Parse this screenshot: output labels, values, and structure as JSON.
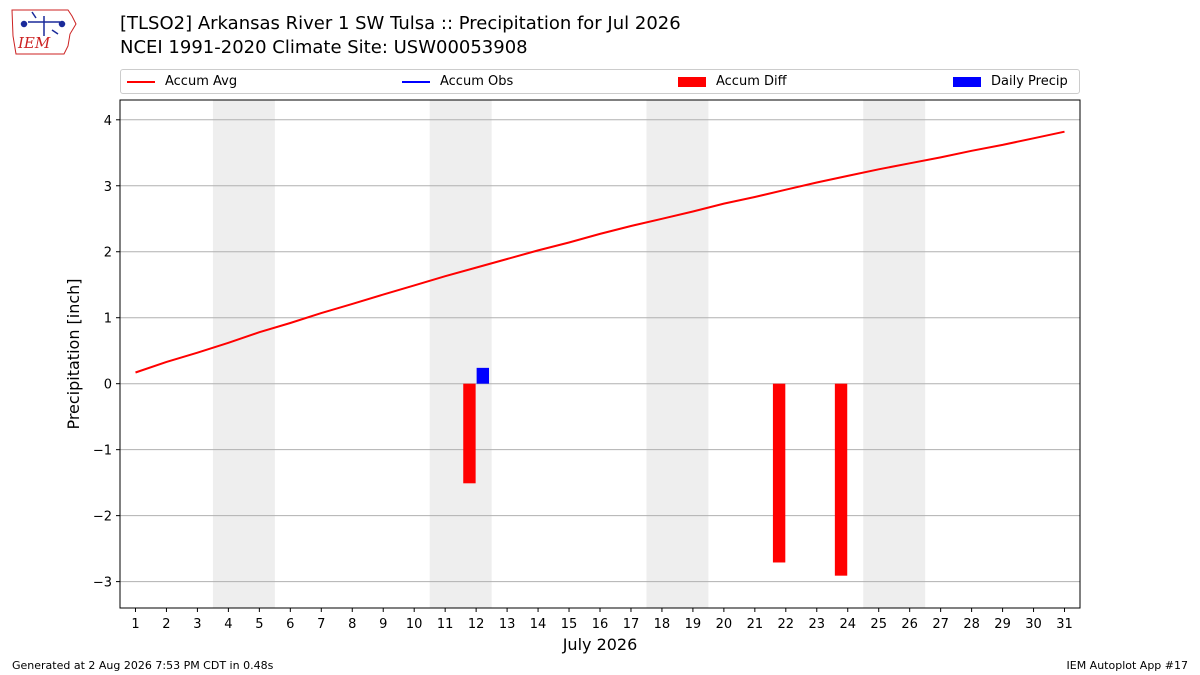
{
  "header": {
    "title_line1": "[TLSO2] Arkansas River 1 SW Tulsa :: Precipitation for Jul 2026",
    "title_line2": "NCEI 1991-2020 Climate Site: USW00053908"
  },
  "logo": {
    "text": "IEM",
    "color": "#cc2222"
  },
  "colors": {
    "avg": "#ff0000",
    "obs": "#0000ff",
    "diff": "#ff0000",
    "daily": "#0000ff",
    "weekend": "#eeeeee",
    "grid": "#b0b0b0"
  },
  "chart_data": {
    "type": "bar",
    "title": "[TLSO2] Arkansas River 1 SW Tulsa :: Precipitation for Jul 2026",
    "subtitle": "NCEI 1991-2020 Climate Site: USW00053908",
    "xlabel": "July 2026",
    "ylabel": "Precipitation [inch]",
    "xlim": [
      0.5,
      31.5
    ],
    "ylim": [
      -3.4,
      4.3
    ],
    "yticks": [
      4,
      3,
      2,
      1,
      0,
      -1,
      -2,
      -3
    ],
    "ytick_labels": [
      "4",
      "3",
      "2",
      "1",
      "0",
      "−1",
      "−2",
      "−3"
    ],
    "xticks": [
      1,
      2,
      3,
      4,
      5,
      6,
      7,
      8,
      9,
      10,
      11,
      12,
      13,
      14,
      15,
      16,
      17,
      18,
      19,
      20,
      21,
      22,
      23,
      24,
      25,
      26,
      27,
      28,
      29,
      30,
      31
    ],
    "grid": "horizontal",
    "legend_position": "top",
    "legend": [
      {
        "label": "Accum Avg",
        "kind": "line",
        "color": "#ff0000"
      },
      {
        "label": "Accum Obs",
        "kind": "line",
        "color": "#0000ff"
      },
      {
        "label": "Accum Diff",
        "kind": "patch",
        "color": "#ff0000"
      },
      {
        "label": "Daily Precip",
        "kind": "patch",
        "color": "#0000ff"
      }
    ],
    "weekend_spans": [
      [
        3.5,
        5.5
      ],
      [
        10.5,
        12.5
      ],
      [
        17.5,
        19.5
      ],
      [
        24.5,
        26.5
      ]
    ],
    "series": [
      {
        "name": "Accum Avg",
        "type": "line",
        "color": "#ff0000",
        "x": [
          1,
          2,
          3,
          4,
          5,
          6,
          7,
          8,
          9,
          10,
          11,
          12,
          13,
          14,
          15,
          16,
          17,
          18,
          19,
          20,
          21,
          22,
          23,
          24,
          25,
          26,
          27,
          28,
          29,
          30,
          31
        ],
        "values": [
          0.17,
          0.33,
          0.47,
          0.62,
          0.78,
          0.92,
          1.07,
          1.21,
          1.35,
          1.49,
          1.63,
          1.76,
          1.89,
          2.02,
          2.14,
          2.27,
          2.39,
          2.5,
          2.61,
          2.73,
          2.83,
          2.94,
          3.05,
          3.15,
          3.25,
          3.34,
          3.43,
          3.53,
          3.62,
          3.72,
          3.82
        ]
      },
      {
        "name": "Accum Diff",
        "type": "bar",
        "color": "#ff0000",
        "x": [
          12,
          22,
          24
        ],
        "values": [
          -1.51,
          -2.71,
          -2.91
        ]
      },
      {
        "name": "Daily Precip",
        "type": "bar",
        "color": "#0000ff",
        "x": [
          12
        ],
        "values": [
          0.24
        ]
      }
    ]
  },
  "footer": {
    "left": "Generated at 2 Aug 2026 7:53 PM CDT in 0.48s",
    "right": "IEM Autoplot App #17"
  }
}
